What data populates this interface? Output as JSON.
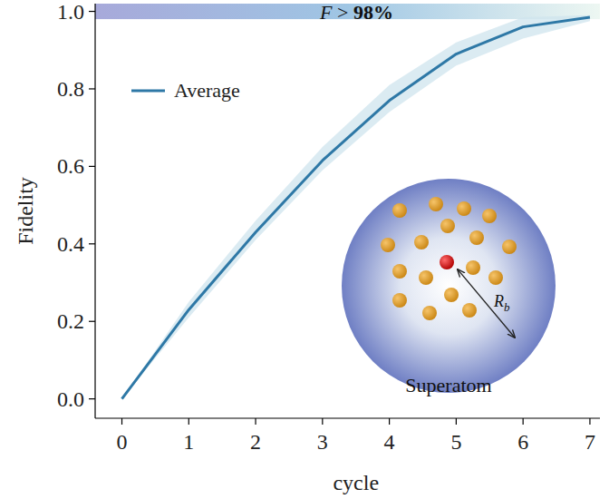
{
  "chart_data": {
    "type": "line",
    "x_label": "cycle",
    "y_label": "Fidelity",
    "x": [
      0,
      1,
      2,
      3,
      4,
      5,
      6,
      7
    ],
    "series": [
      {
        "name": "Average",
        "color": "#2e78a6",
        "values": [
          0.0,
          0.23,
          0.43,
          0.615,
          0.77,
          0.89,
          0.96,
          0.985
        ]
      }
    ],
    "spread_low": [
      0.0,
      0.21,
      0.41,
      0.59,
      0.74,
      0.86,
      0.93,
      0.975
    ],
    "spread_high": [
      0.0,
      0.25,
      0.46,
      0.65,
      0.81,
      0.92,
      0.985,
      0.99
    ],
    "threshold": 0.98,
    "annotation": "F > 98%",
    "inset_label": "Superatom",
    "radius_label": "Rb",
    "xlim": [
      -0.4,
      7.15
    ],
    "ylim": [
      -0.05,
      1.02
    ],
    "xticks": [
      0,
      1,
      2,
      3,
      4,
      5,
      6,
      7
    ],
    "yticks": [
      {
        "value": 0,
        "label": "0.0"
      },
      {
        "value": 0.2,
        "label": "0.2"
      },
      {
        "value": 0.4,
        "label": "0.4"
      },
      {
        "value": 0.6,
        "label": "0.6"
      },
      {
        "value": 0.8,
        "label": "0.8"
      },
      {
        "value": 1.0,
        "label": "1.0"
      }
    ],
    "legend": "upper left",
    "grid": false
  }
}
